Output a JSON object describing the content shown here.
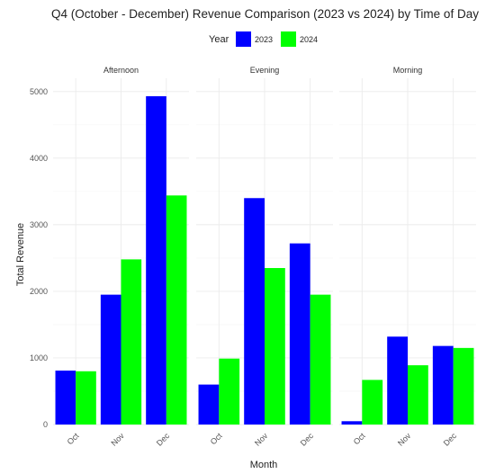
{
  "chart_data": {
    "type": "bar",
    "title": "Q4 (October - December) Revenue Comparison (2023 vs 2024) by Time of Day",
    "xlabel": "Month",
    "ylabel": "Total Revenue",
    "legend": {
      "title": "Year",
      "position": "top"
    },
    "ylim": [
      0,
      5200
    ],
    "yticks": [
      0,
      1000,
      2000,
      3000,
      4000,
      5000
    ],
    "grid": true,
    "categories": [
      "Oct",
      "Nov",
      "Dec"
    ],
    "series_meta": [
      {
        "name": "2023",
        "color": "#0000ff"
      },
      {
        "name": "2024",
        "color": "#00ff00"
      }
    ],
    "facets": [
      {
        "label": "Afternoon",
        "series": [
          {
            "name": "2023",
            "values": [
              810,
              1950,
              4930
            ]
          },
          {
            "name": "2024",
            "values": [
              800,
              2480,
              3440
            ]
          }
        ]
      },
      {
        "label": "Evening",
        "series": [
          {
            "name": "2023",
            "values": [
              600,
              3400,
              2720
            ]
          },
          {
            "name": "2024",
            "values": [
              990,
              2350,
              1950
            ]
          }
        ]
      },
      {
        "label": "Morning",
        "series": [
          {
            "name": "2023",
            "values": [
              50,
              1320,
              1180
            ]
          },
          {
            "name": "2024",
            "values": [
              670,
              890,
              1150
            ]
          }
        ]
      }
    ]
  }
}
